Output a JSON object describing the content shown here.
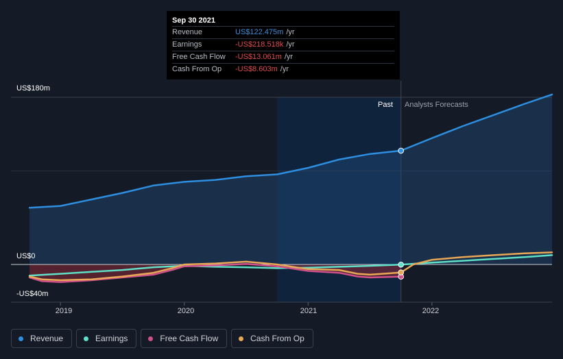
{
  "tooltip": {
    "date": "Sep 30 2021",
    "rows": [
      {
        "label": "Revenue",
        "value": "US$122.475m",
        "unit": "/yr"
      },
      {
        "label": "Earnings",
        "value": "-US$218.518k",
        "unit": "/yr"
      },
      {
        "label": "Free Cash Flow",
        "value": "-US$13.061m",
        "unit": "/yr"
      },
      {
        "label": "Cash From Op",
        "value": "-US$8.603m",
        "unit": "/yr"
      }
    ]
  },
  "regions": {
    "past": "Past",
    "forecast": "Analysts Forecasts"
  },
  "legend": [
    {
      "label": "Revenue",
      "color": "#2e8fe0"
    },
    {
      "label": "Earnings",
      "color": "#5fe0c8"
    },
    {
      "label": "Free Cash Flow",
      "color": "#d0508a"
    },
    {
      "label": "Cash From Op",
      "color": "#e8a855"
    }
  ],
  "chart_data": {
    "type": "line",
    "ytick_labels": [
      "US$180m",
      "US$0",
      "-US$40m"
    ],
    "xtick_labels": [
      "2019",
      "2020",
      "2021",
      "2022"
    ],
    "ylim": [
      -40,
      180
    ],
    "xlim": [
      2018.6,
      2022.97
    ],
    "divider_x": 2021.75,
    "highlight_start": 2020.75,
    "series": [
      {
        "name": "Revenue",
        "color": "#2e8fe0",
        "area": true,
        "x": [
          2018.75,
          2019.0,
          2019.25,
          2019.5,
          2019.75,
          2020.0,
          2020.25,
          2020.5,
          2020.75,
          2021.0,
          2021.25,
          2021.5,
          2021.75,
          2022.0,
          2022.25,
          2022.5,
          2022.75,
          2022.97
        ],
        "y": [
          61,
          63,
          70,
          77,
          85,
          89,
          91,
          95,
          97,
          104,
          113,
          119,
          122.5,
          136,
          149,
          161,
          173,
          183
        ]
      },
      {
        "name": "Earnings",
        "color": "#5fe0c8",
        "area": false,
        "x": [
          2018.75,
          2019.0,
          2019.25,
          2019.5,
          2019.75,
          2020.0,
          2020.25,
          2020.5,
          2020.75,
          2021.0,
          2021.25,
          2021.5,
          2021.75,
          2022.0,
          2022.25,
          2022.5,
          2022.75,
          2022.97
        ],
        "y": [
          -12,
          -10,
          -8,
          -6,
          -3,
          -1.5,
          -2.5,
          -3,
          -4,
          -3.5,
          -2.5,
          -1.5,
          -0.2,
          2,
          4,
          6,
          8,
          10
        ]
      },
      {
        "name": "Free Cash Flow",
        "color": "#d0508a",
        "area": false,
        "x": [
          2018.75,
          2018.85,
          2019.0,
          2019.25,
          2019.5,
          2019.75,
          2019.9,
          2020.0,
          2020.25,
          2020.5,
          2020.75,
          2021.0,
          2021.25,
          2021.4,
          2021.5,
          2021.75
        ],
        "y": [
          -14,
          -18,
          -19,
          -17,
          -14,
          -11,
          -6,
          -2,
          -1,
          0.5,
          -2,
          -7,
          -9,
          -13,
          -14,
          -13.1
        ]
      },
      {
        "name": "Cash From Op",
        "color": "#e8a855",
        "area": false,
        "x": [
          2018.75,
          2018.85,
          2019.0,
          2019.25,
          2019.5,
          2019.75,
          2019.9,
          2020.0,
          2020.25,
          2020.5,
          2020.75,
          2021.0,
          2021.25,
          2021.4,
          2021.5,
          2021.75,
          2021.85,
          2022.0,
          2022.25,
          2022.5,
          2022.75,
          2022.97
        ],
        "y": [
          -13,
          -16,
          -17,
          -16,
          -13,
          -9,
          -4,
          0,
          1,
          3,
          0,
          -5,
          -6,
          -10,
          -11,
          -8.6,
          0,
          5,
          8,
          10,
          12,
          13
        ]
      }
    ]
  }
}
